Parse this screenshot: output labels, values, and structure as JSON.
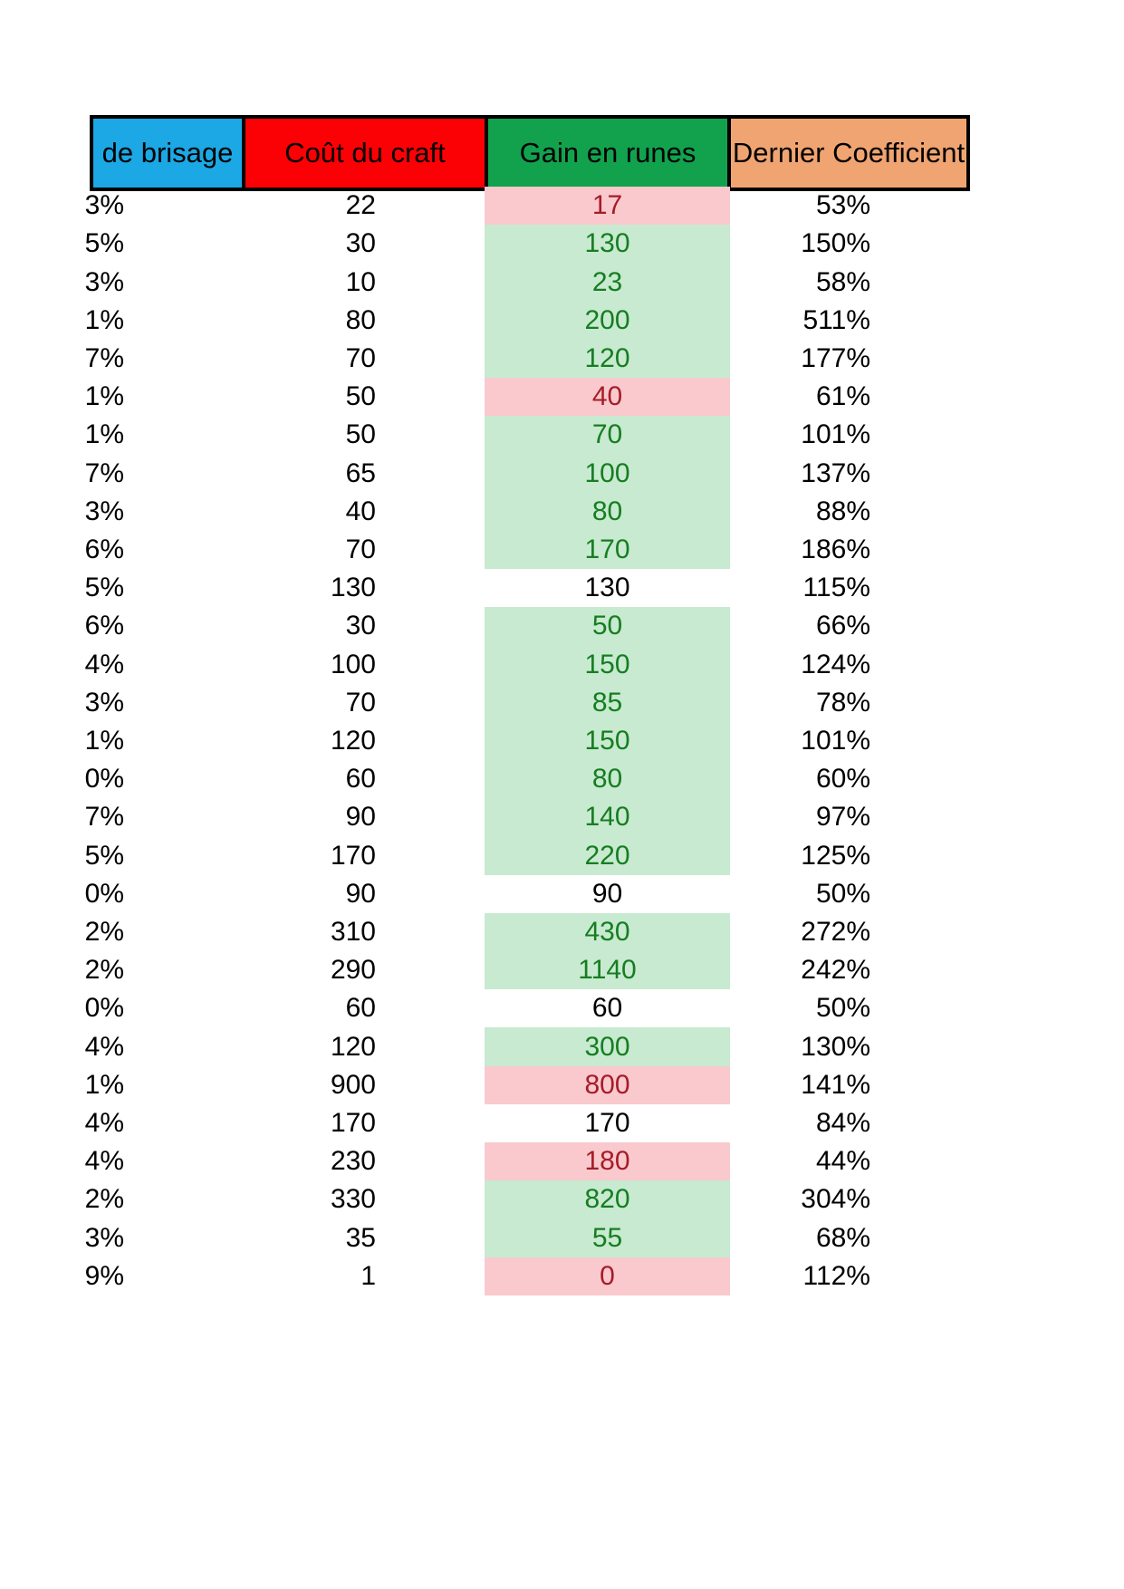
{
  "table": {
    "headers": [
      {
        "label": "de brisage",
        "color": "#1BA8E4"
      },
      {
        "label": "Coût du craft",
        "color": "#FB0005"
      },
      {
        "label": "Gain en runes",
        "color": "#12A24E"
      },
      {
        "label": "Dernier Coefficient",
        "color": "#F0A471"
      }
    ],
    "colors": {
      "gain_positive_bg": "#C7EAD0",
      "gain_negative_bg": "#F9C9CE",
      "gain_neutral_bg": "#FFFFFF",
      "gain_positive_text": "#177D21",
      "gain_negative_text": "#A61C28",
      "gain_neutral_text": "#000000",
      "header_border": "#000000",
      "body_text": "#000000"
    },
    "rows": [
      {
        "taux": "3%",
        "cout": "22",
        "gain": "17",
        "coef": "53%",
        "gain_state": "negative"
      },
      {
        "taux": "5%",
        "cout": "30",
        "gain": "130",
        "coef": "150%",
        "gain_state": "positive"
      },
      {
        "taux": "3%",
        "cout": "10",
        "gain": "23",
        "coef": "58%",
        "gain_state": "positive"
      },
      {
        "taux": "1%",
        "cout": "80",
        "gain": "200",
        "coef": "511%",
        "gain_state": "positive"
      },
      {
        "taux": "7%",
        "cout": "70",
        "gain": "120",
        "coef": "177%",
        "gain_state": "positive"
      },
      {
        "taux": "1%",
        "cout": "50",
        "gain": "40",
        "coef": "61%",
        "gain_state": "negative"
      },
      {
        "taux": "1%",
        "cout": "50",
        "gain": "70",
        "coef": "101%",
        "gain_state": "positive"
      },
      {
        "taux": "7%",
        "cout": "65",
        "gain": "100",
        "coef": "137%",
        "gain_state": "positive"
      },
      {
        "taux": "3%",
        "cout": "40",
        "gain": "80",
        "coef": "88%",
        "gain_state": "positive"
      },
      {
        "taux": "6%",
        "cout": "70",
        "gain": "170",
        "coef": "186%",
        "gain_state": "positive"
      },
      {
        "taux": "5%",
        "cout": "130",
        "gain": "130",
        "coef": "115%",
        "gain_state": "neutral"
      },
      {
        "taux": "6%",
        "cout": "30",
        "gain": "50",
        "coef": "66%",
        "gain_state": "positive"
      },
      {
        "taux": "4%",
        "cout": "100",
        "gain": "150",
        "coef": "124%",
        "gain_state": "positive"
      },
      {
        "taux": "3%",
        "cout": "70",
        "gain": "85",
        "coef": "78%",
        "gain_state": "positive"
      },
      {
        "taux": "1%",
        "cout": "120",
        "gain": "150",
        "coef": "101%",
        "gain_state": "positive"
      },
      {
        "taux": "0%",
        "cout": "60",
        "gain": "80",
        "coef": "60%",
        "gain_state": "positive"
      },
      {
        "taux": "7%",
        "cout": "90",
        "gain": "140",
        "coef": "97%",
        "gain_state": "positive"
      },
      {
        "taux": "5%",
        "cout": "170",
        "gain": "220",
        "coef": "125%",
        "gain_state": "positive"
      },
      {
        "taux": "0%",
        "cout": "90",
        "gain": "90",
        "coef": "50%",
        "gain_state": "neutral"
      },
      {
        "taux": "2%",
        "cout": "310",
        "gain": "430",
        "coef": "272%",
        "gain_state": "positive"
      },
      {
        "taux": "2%",
        "cout": "290",
        "gain": "1140",
        "coef": "242%",
        "gain_state": "positive"
      },
      {
        "taux": "0%",
        "cout": "60",
        "gain": "60",
        "coef": "50%",
        "gain_state": "neutral"
      },
      {
        "taux": "4%",
        "cout": "120",
        "gain": "300",
        "coef": "130%",
        "gain_state": "positive"
      },
      {
        "taux": "1%",
        "cout": "900",
        "gain": "800",
        "coef": "141%",
        "gain_state": "negative"
      },
      {
        "taux": "4%",
        "cout": "170",
        "gain": "170",
        "coef": "84%",
        "gain_state": "neutral"
      },
      {
        "taux": "4%",
        "cout": "230",
        "gain": "180",
        "coef": "44%",
        "gain_state": "negative"
      },
      {
        "taux": "2%",
        "cout": "330",
        "gain": "820",
        "coef": "304%",
        "gain_state": "positive"
      },
      {
        "taux": "3%",
        "cout": "35",
        "gain": "55",
        "coef": "68%",
        "gain_state": "positive"
      },
      {
        "taux": "9%",
        "cout": "1",
        "gain": "0",
        "coef": "112%",
        "gain_state": "negative"
      }
    ]
  }
}
